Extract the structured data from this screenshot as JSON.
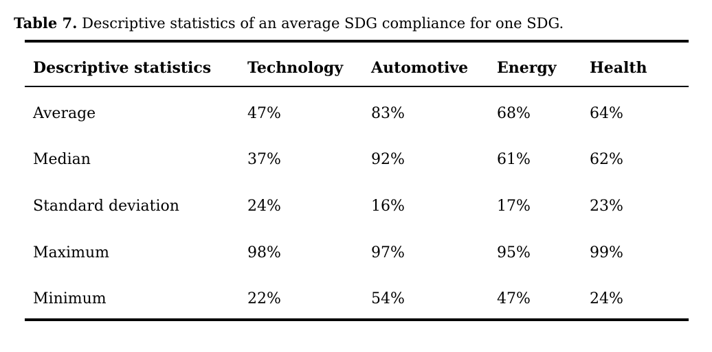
{
  "caption": {
    "label": "Table 7.",
    "text": "Descriptive statistics of an average SDG compliance for one SDG."
  },
  "table": {
    "columns": [
      "Descriptive statistics",
      "Technology",
      "Automotive",
      "Energy",
      "Health"
    ],
    "rows": [
      {
        "label": "Average",
        "values": [
          "47%",
          "83%",
          "68%",
          "64%"
        ]
      },
      {
        "label": "Median",
        "values": [
          "37%",
          "92%",
          "61%",
          "62%"
        ]
      },
      {
        "label": "Standard deviation",
        "values": [
          "24%",
          "16%",
          "17%",
          "23%"
        ]
      },
      {
        "label": "Maximum",
        "values": [
          "98%",
          "97%",
          "95%",
          "99%"
        ]
      },
      {
        "label": "Minimum",
        "values": [
          "22%",
          "54%",
          "47%",
          "24%"
        ]
      }
    ],
    "text_color": "#000000",
    "background_color": "#ffffff"
  }
}
